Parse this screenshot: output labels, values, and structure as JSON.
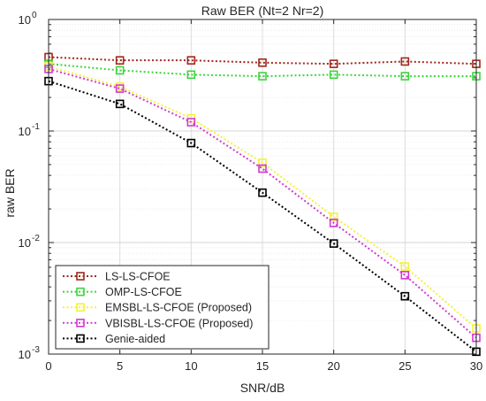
{
  "chart_data": {
    "type": "line",
    "title": "Raw BER (Nt=2 Nr=2)",
    "xlabel": "SNR/dB",
    "ylabel": "raw BER",
    "x": [
      0,
      5,
      10,
      15,
      20,
      25,
      30
    ],
    "xlim": [
      0,
      30
    ],
    "ylim": [
      0.001,
      1
    ],
    "yscale": "log",
    "grid": true,
    "legend_position": "bottom-left",
    "x_ticks": [
      "0",
      "5",
      "10",
      "15",
      "20",
      "25",
      "30"
    ],
    "y_ticks": [
      {
        "value": 0.001,
        "mantissa": "10",
        "exponent": "-3"
      },
      {
        "value": 0.01,
        "mantissa": "10",
        "exponent": "-2"
      },
      {
        "value": 0.1,
        "mantissa": "10",
        "exponent": "-1"
      },
      {
        "value": 1,
        "mantissa": "10",
        "exponent": "0"
      }
    ],
    "series": [
      {
        "name": "LS-LS-CFOE",
        "color": "#a0281e",
        "values": [
          0.46,
          0.43,
          0.43,
          0.41,
          0.4,
          0.42,
          0.4
        ]
      },
      {
        "name": "OMP-LS-CFOE",
        "color": "#3dd43d",
        "values": [
          0.4,
          0.35,
          0.32,
          0.31,
          0.32,
          0.31,
          0.31
        ]
      },
      {
        "name": "EMSBL-LS-CFOE (Proposed)",
        "color": "#f2f23a",
        "values": [
          0.38,
          0.25,
          0.13,
          0.052,
          0.017,
          0.0061,
          0.0017
        ]
      },
      {
        "name": "VBISBL-LS-CFOE (Proposed)",
        "color": "#d23ad2",
        "values": [
          0.36,
          0.24,
          0.12,
          0.046,
          0.015,
          0.0051,
          0.0014
        ]
      },
      {
        "name": "Genie-aided",
        "color": "#000000",
        "values": [
          0.28,
          0.175,
          0.078,
          0.028,
          0.0098,
          0.0033,
          0.00105
        ]
      }
    ]
  }
}
